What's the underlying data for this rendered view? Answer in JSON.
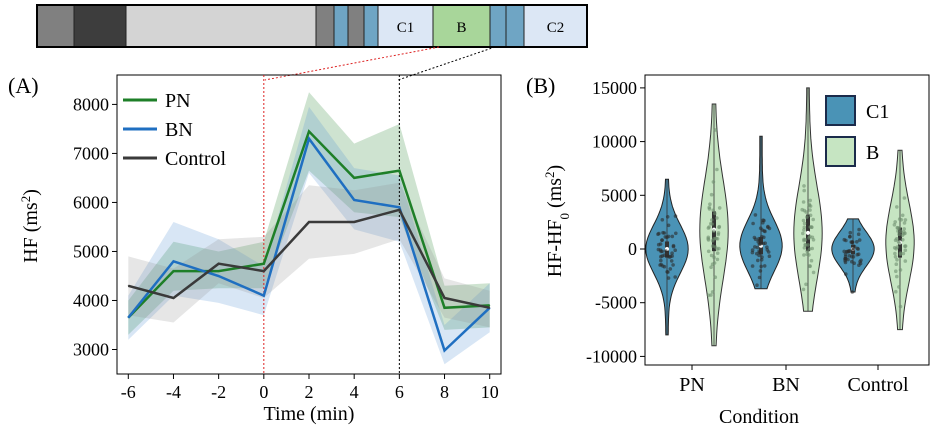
{
  "timeline": {
    "segments": [
      {
        "name": "seg-1",
        "label": "",
        "color": "#808080"
      },
      {
        "name": "seg-2",
        "label": "",
        "color": "#3d3d3d"
      },
      {
        "name": "seg-3",
        "label": "",
        "color": "#d4d4d4"
      },
      {
        "name": "seg-4",
        "label": "",
        "color": "#808080"
      },
      {
        "name": "seg-5",
        "label": "",
        "color": "#6fa5c4"
      },
      {
        "name": "seg-6",
        "label": "",
        "color": "#808080"
      },
      {
        "name": "seg-7",
        "label": "",
        "color": "#6fa5c4"
      },
      {
        "name": "seg-c1",
        "label": "C1",
        "color": "#dce7f5"
      },
      {
        "name": "seg-b",
        "label": "B",
        "color": "#a8d69a"
      },
      {
        "name": "seg-8",
        "label": "",
        "color": "#6fa5c4"
      },
      {
        "name": "seg-9",
        "label": "",
        "color": "#6fa5c4"
      },
      {
        "name": "seg-c2",
        "label": "C2",
        "color": "#dce7f5"
      }
    ]
  },
  "chart_data": [
    {
      "panel": "(A)",
      "type": "line",
      "xlabel": "Time (min)",
      "ylabel_main": "HF (ms",
      "ylabel_sup": "2",
      "ylabel_end": ")",
      "x": [
        -6,
        -4,
        -2,
        0,
        2,
        4,
        6,
        8,
        10
      ],
      "xticks": [
        "-6",
        "-4",
        "-2",
        "0",
        "2",
        "4",
        "6",
        "8",
        "10"
      ],
      "yticks": [
        3000,
        4000,
        5000,
        6000,
        7000,
        8000
      ],
      "ylim": [
        2500,
        8600
      ],
      "xlim": [
        -6.5,
        10.5
      ],
      "vlines": [
        {
          "x": 0,
          "style": "red-dotted"
        },
        {
          "x": 6,
          "style": "black-dotted"
        }
      ],
      "series": [
        {
          "name": "PN",
          "color": "#1e7f28",
          "band": "#1e7f28",
          "values": [
            3650,
            4600,
            4600,
            4750,
            7450,
            6500,
            6650,
            3850,
            3900
          ],
          "upper": [
            4000,
            5200,
            5000,
            5200,
            8250,
            7200,
            7600,
            4300,
            4350
          ],
          "lower": [
            3300,
            4200,
            4250,
            4250,
            6650,
            5800,
            5700,
            3400,
            3450
          ]
        },
        {
          "name": "BN",
          "color": "#1f6fc1",
          "band": "#4f8fd1",
          "values": [
            3650,
            4800,
            4500,
            4100,
            7300,
            6050,
            5900,
            2980,
            3850
          ],
          "upper": [
            4100,
            5600,
            5250,
            4700,
            7950,
            6700,
            6550,
            3500,
            4350
          ],
          "lower": [
            3200,
            4100,
            3950,
            3700,
            6600,
            5450,
            5200,
            2700,
            3350
          ]
        },
        {
          "name": "Control",
          "color": "#3a3a3a",
          "band": "#8c8c8c",
          "values": [
            4300,
            4050,
            4750,
            4600,
            5600,
            5600,
            5850,
            4050,
            3850
          ],
          "upper": [
            4900,
            4650,
            5250,
            5300,
            6350,
            6250,
            6400,
            4450,
            4200
          ],
          "lower": [
            3700,
            3550,
            4350,
            4050,
            4850,
            4950,
            5250,
            3650,
            3450
          ]
        }
      ],
      "legend_placement": "top-left"
    },
    {
      "panel": "(B)",
      "type": "violin",
      "xlabel": "Condition",
      "ylabel_main": "HF-HF",
      "ylabel_sub": "0",
      "ylabel_end": " (ms",
      "ylabel_sup": "2",
      "ylabel_close": ")",
      "categories": [
        "PN",
        "BN",
        "Control"
      ],
      "yticks": [
        -10000,
        -5000,
        0,
        5000,
        10000,
        15000
      ],
      "ylim": [
        -10800,
        16200
      ],
      "series": [
        {
          "name": "C1",
          "color": "#4a93b6",
          "edge": "#222222",
          "groups": [
            {
              "min": -8000,
              "max": 6500,
              "q1": -800,
              "median": 0,
              "q3": 700
            },
            {
              "min": -3700,
              "max": 10500,
              "q1": -500,
              "median": 300,
              "q3": 1100
            },
            {
              "min": -4000,
              "max": 2800,
              "q1": -500,
              "median": 0,
              "q3": 400
            }
          ]
        },
        {
          "name": "B",
          "color": "#c6e5c2",
          "edge": "#333333",
          "groups": [
            {
              "min": -9000,
              "max": 13500,
              "q1": -200,
              "median": 1800,
              "q3": 3500
            },
            {
              "min": -5800,
              "max": 15000,
              "q1": -200,
              "median": 1500,
              "q3": 3200
            },
            {
              "min": -7500,
              "max": 9200,
              "q1": -800,
              "median": 600,
              "q3": 2000
            }
          ]
        }
      ],
      "legend_placement": "top-right"
    }
  ]
}
